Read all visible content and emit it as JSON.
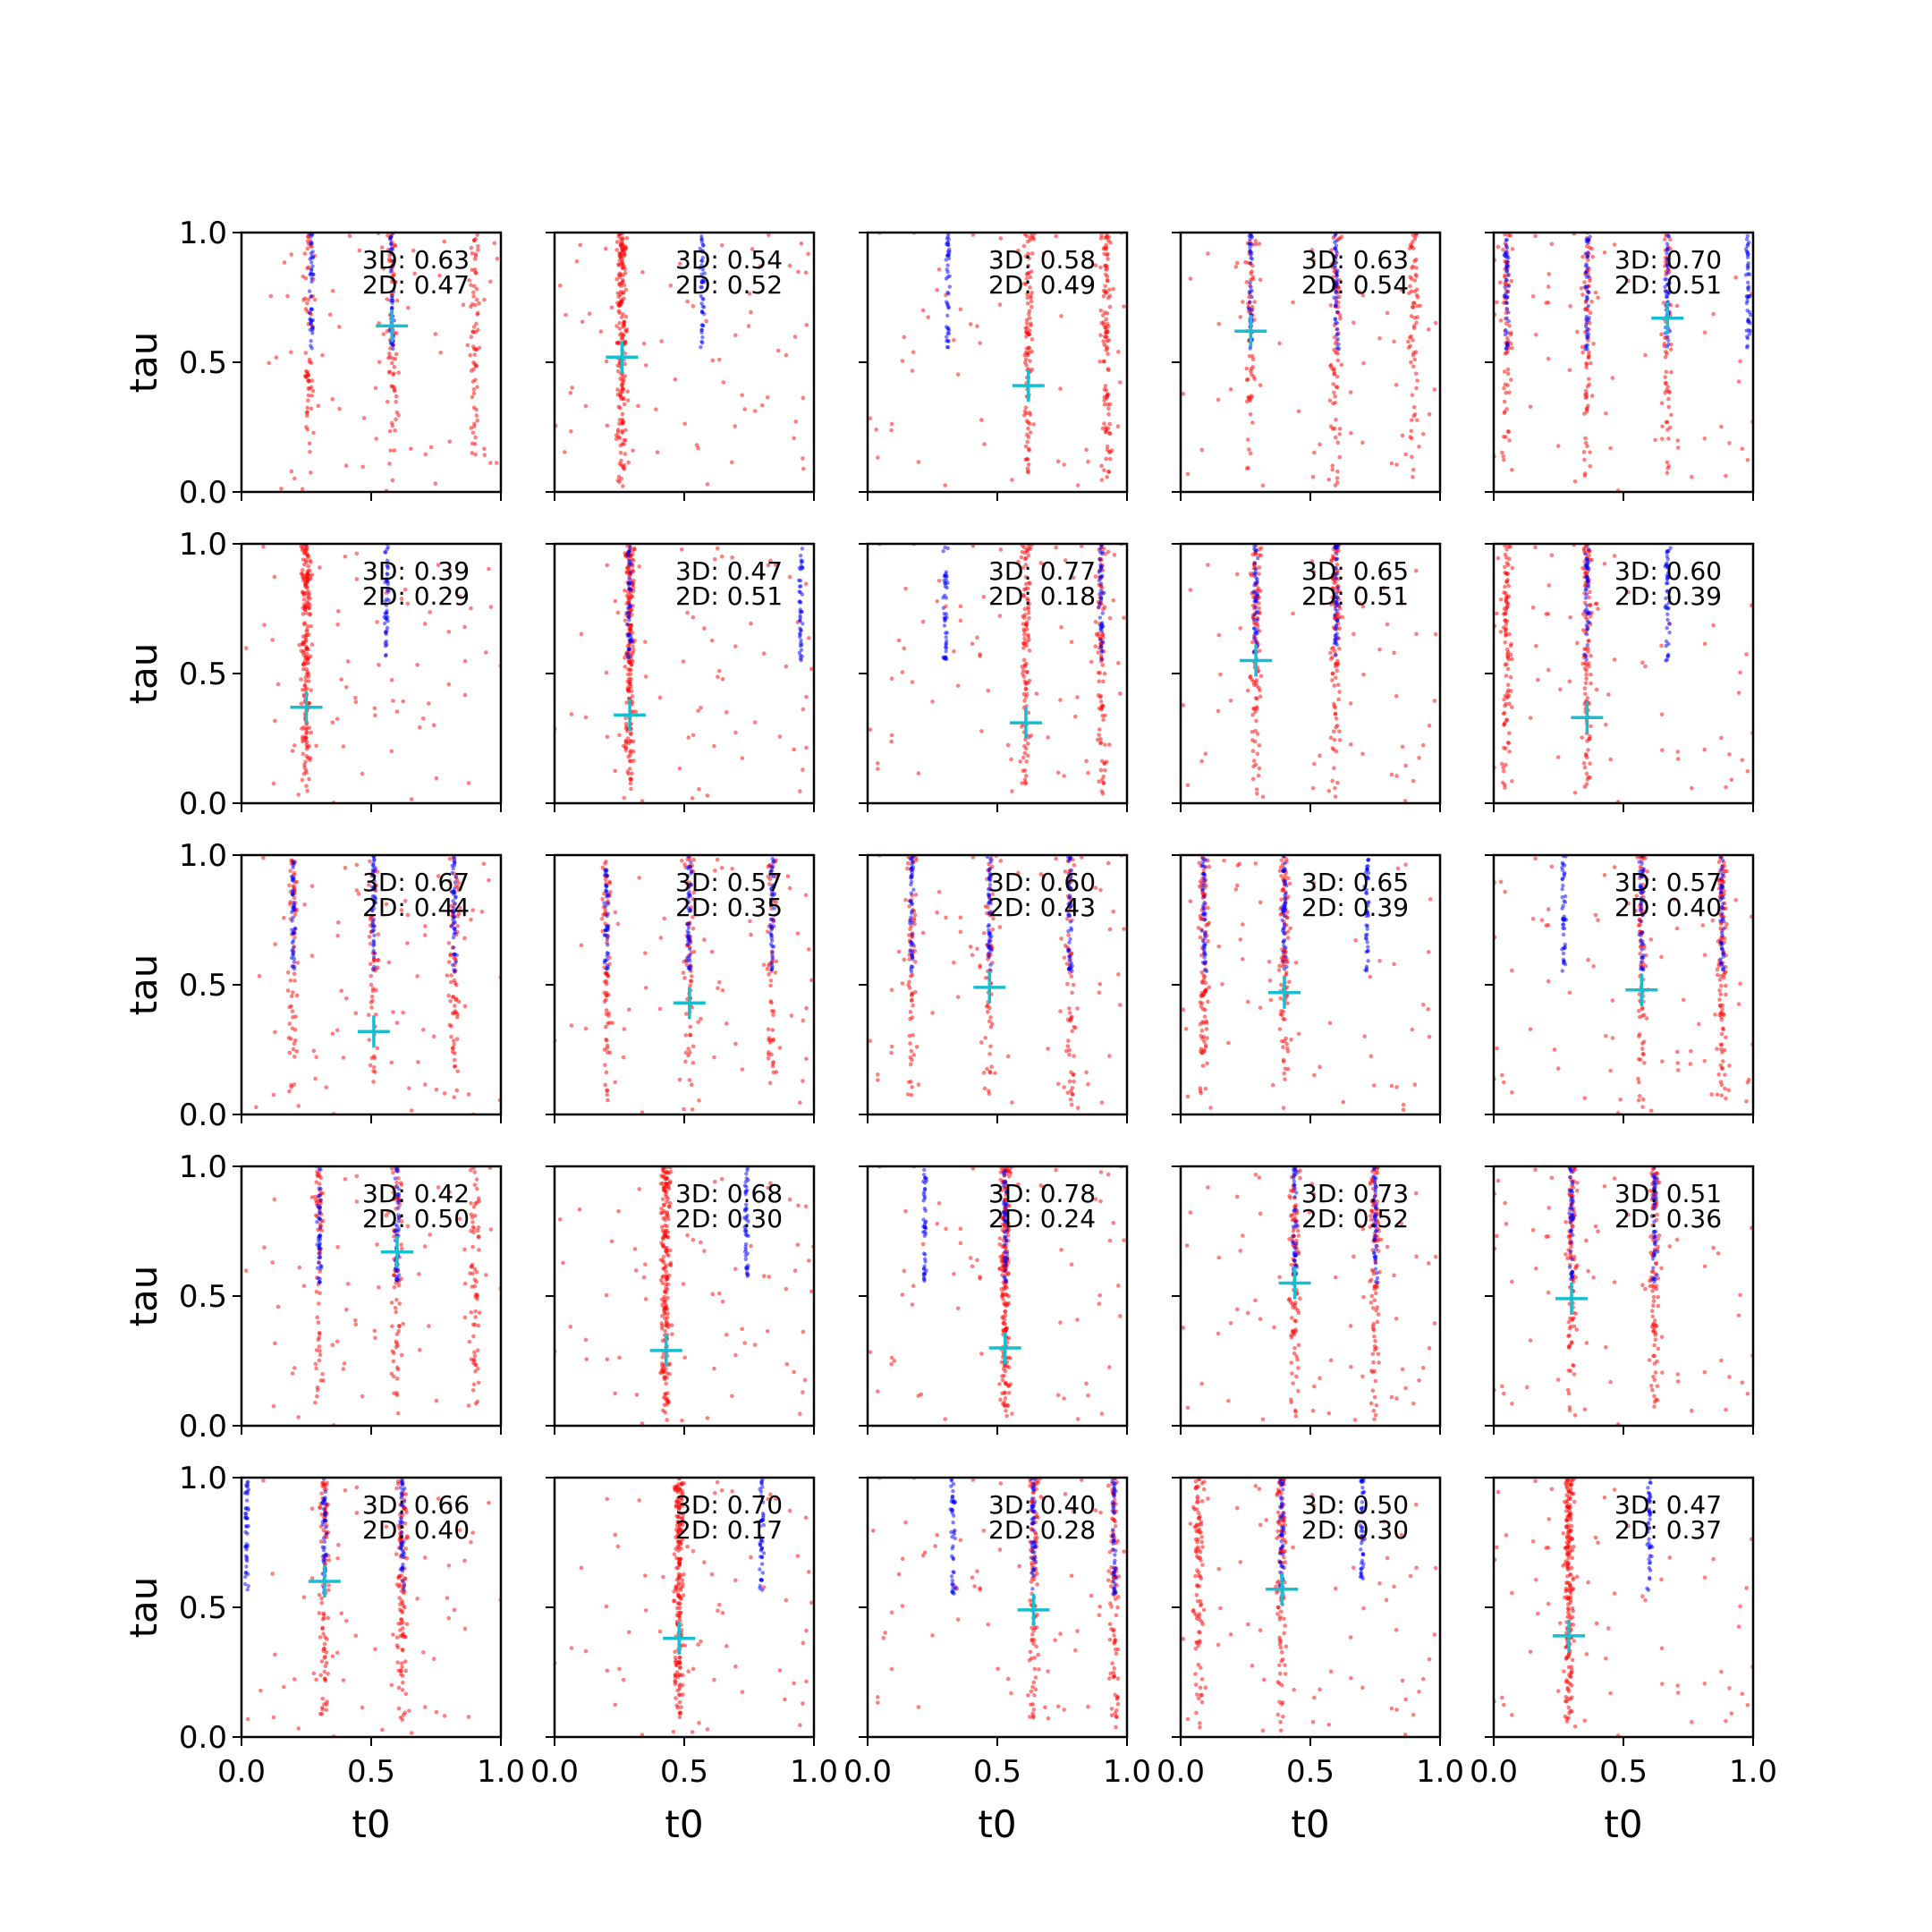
{
  "chart_data": {
    "type": "scatter",
    "grid": false,
    "rows": 5,
    "cols": 5,
    "xlabel": "t0",
    "ylabel": "tau",
    "xlim": [
      0,
      1
    ],
    "ylim": [
      0,
      1
    ],
    "xticks": [
      "0.0",
      "0.5",
      "1.0"
    ],
    "yticks": [
      "0.0",
      "0.5",
      "1.0"
    ],
    "colors": {
      "series_red": "#ff0000",
      "series_blue": "#0000ff",
      "marker": "#17becf"
    },
    "panels": [
      {
        "annot3d": "3D: 0.63",
        "annot2d": "2D: 0.47",
        "marker": [
          0.58,
          0.64
        ],
        "red_clusters": [
          0.26,
          0.58,
          0.9
        ],
        "blue_clusters": [
          0.27,
          0.58
        ]
      },
      {
        "annot3d": "3D: 0.54",
        "annot2d": "2D: 0.52",
        "marker": [
          0.26,
          0.52
        ],
        "red_clusters": [
          0.26
        ],
        "blue_clusters": [
          0.57
        ]
      },
      {
        "annot3d": "3D: 0.58",
        "annot2d": "2D: 0.49",
        "marker": [
          0.62,
          0.41
        ],
        "red_clusters": [
          0.62,
          0.92
        ],
        "blue_clusters": [
          0.31
        ]
      },
      {
        "annot3d": "3D: 0.63",
        "annot2d": "2D: 0.54",
        "marker": [
          0.27,
          0.62
        ],
        "red_clusters": [
          0.27,
          0.6,
          0.9
        ],
        "blue_clusters": [
          0.27,
          0.6
        ]
      },
      {
        "annot3d": "3D: 0.70",
        "annot2d": "2D: 0.51",
        "marker": [
          0.67,
          0.67
        ],
        "red_clusters": [
          0.05,
          0.36,
          0.67
        ],
        "blue_clusters": [
          0.05,
          0.36,
          0.67,
          0.98
        ]
      },
      {
        "annot3d": "3D: 0.39",
        "annot2d": "2D: 0.29",
        "marker": [
          0.25,
          0.37
        ],
        "red_clusters": [
          0.25
        ],
        "blue_clusters": [
          0.56
        ]
      },
      {
        "annot3d": "3D: 0.47",
        "annot2d": "2D: 0.51",
        "marker": [
          0.29,
          0.34
        ],
        "red_clusters": [
          0.29
        ],
        "blue_clusters": [
          0.29,
          0.95
        ]
      },
      {
        "annot3d": "3D: 0.77",
        "annot2d": "2D: 0.18",
        "marker": [
          0.61,
          0.31
        ],
        "red_clusters": [
          0.61,
          0.9
        ],
        "blue_clusters": [
          0.3,
          0.9
        ]
      },
      {
        "annot3d": "3D: 0.65",
        "annot2d": "2D: 0.51",
        "marker": [
          0.29,
          0.55
        ],
        "red_clusters": [
          0.29,
          0.6
        ],
        "blue_clusters": [
          0.29,
          0.6
        ]
      },
      {
        "annot3d": "3D: 0.60",
        "annot2d": "2D: 0.39",
        "marker": [
          0.36,
          0.33
        ],
        "red_clusters": [
          0.05,
          0.36
        ],
        "blue_clusters": [
          0.36,
          0.67
        ]
      },
      {
        "annot3d": "3D: 0.67",
        "annot2d": "2D: 0.44",
        "marker": [
          0.51,
          0.32
        ],
        "red_clusters": [
          0.2,
          0.51,
          0.82
        ],
        "blue_clusters": [
          0.2,
          0.51,
          0.82
        ]
      },
      {
        "annot3d": "3D: 0.57",
        "annot2d": "2D: 0.35",
        "marker": [
          0.52,
          0.43
        ],
        "red_clusters": [
          0.2,
          0.52,
          0.84
        ],
        "blue_clusters": [
          0.2,
          0.52,
          0.84
        ]
      },
      {
        "annot3d": "3D: 0.60",
        "annot2d": "2D: 0.43",
        "marker": [
          0.47,
          0.49
        ],
        "red_clusters": [
          0.17,
          0.47,
          0.78
        ],
        "blue_clusters": [
          0.17,
          0.47,
          0.78
        ]
      },
      {
        "annot3d": "3D: 0.65",
        "annot2d": "2D: 0.39",
        "marker": [
          0.4,
          0.47
        ],
        "red_clusters": [
          0.09,
          0.4
        ],
        "blue_clusters": [
          0.09,
          0.4,
          0.72
        ]
      },
      {
        "annot3d": "3D: 0.57",
        "annot2d": "2D: 0.40",
        "marker": [
          0.57,
          0.48
        ],
        "red_clusters": [
          0.57,
          0.88
        ],
        "blue_clusters": [
          0.27,
          0.57,
          0.88
        ]
      },
      {
        "annot3d": "3D: 0.42",
        "annot2d": "2D: 0.50",
        "marker": [
          0.6,
          0.67
        ],
        "red_clusters": [
          0.3,
          0.6,
          0.9
        ],
        "blue_clusters": [
          0.3,
          0.6
        ]
      },
      {
        "annot3d": "3D: 0.68",
        "annot2d": "2D: 0.30",
        "marker": [
          0.43,
          0.29
        ],
        "red_clusters": [
          0.43
        ],
        "blue_clusters": [
          0.74
        ]
      },
      {
        "annot3d": "3D: 0.78",
        "annot2d": "2D: 0.24",
        "marker": [
          0.53,
          0.3
        ],
        "red_clusters": [
          0.53
        ],
        "blue_clusters": [
          0.22,
          0.53
        ]
      },
      {
        "annot3d": "3D: 0.73",
        "annot2d": "2D: 0.52",
        "marker": [
          0.44,
          0.55
        ],
        "red_clusters": [
          0.44,
          0.75
        ],
        "blue_clusters": [
          0.44,
          0.75
        ]
      },
      {
        "annot3d": "3D: 0.51",
        "annot2d": "2D: 0.36",
        "marker": [
          0.3,
          0.49
        ],
        "red_clusters": [
          0.3,
          0.62
        ],
        "blue_clusters": [
          0.3,
          0.62
        ]
      },
      {
        "annot3d": "3D: 0.66",
        "annot2d": "2D: 0.40",
        "marker": [
          0.32,
          0.6
        ],
        "red_clusters": [
          0.32,
          0.62
        ],
        "blue_clusters": [
          0.02,
          0.32,
          0.62
        ]
      },
      {
        "annot3d": "3D: 0.70",
        "annot2d": "2D: 0.17",
        "marker": [
          0.48,
          0.38
        ],
        "red_clusters": [
          0.48
        ],
        "blue_clusters": [
          0.8
        ]
      },
      {
        "annot3d": "3D: 0.40",
        "annot2d": "2D: 0.28",
        "marker": [
          0.64,
          0.49
        ],
        "red_clusters": [
          0.64,
          0.95
        ],
        "blue_clusters": [
          0.33,
          0.64,
          0.95
        ]
      },
      {
        "annot3d": "3D: 0.50",
        "annot2d": "2D: 0.30",
        "marker": [
          0.39,
          0.57
        ],
        "red_clusters": [
          0.07,
          0.39
        ],
        "blue_clusters": [
          0.39,
          0.7
        ]
      },
      {
        "annot3d": "3D: 0.47",
        "annot2d": "2D: 0.37",
        "marker": [
          0.29,
          0.39
        ],
        "red_clusters": [
          0.29
        ],
        "blue_clusters": [
          0.6
        ]
      }
    ]
  }
}
